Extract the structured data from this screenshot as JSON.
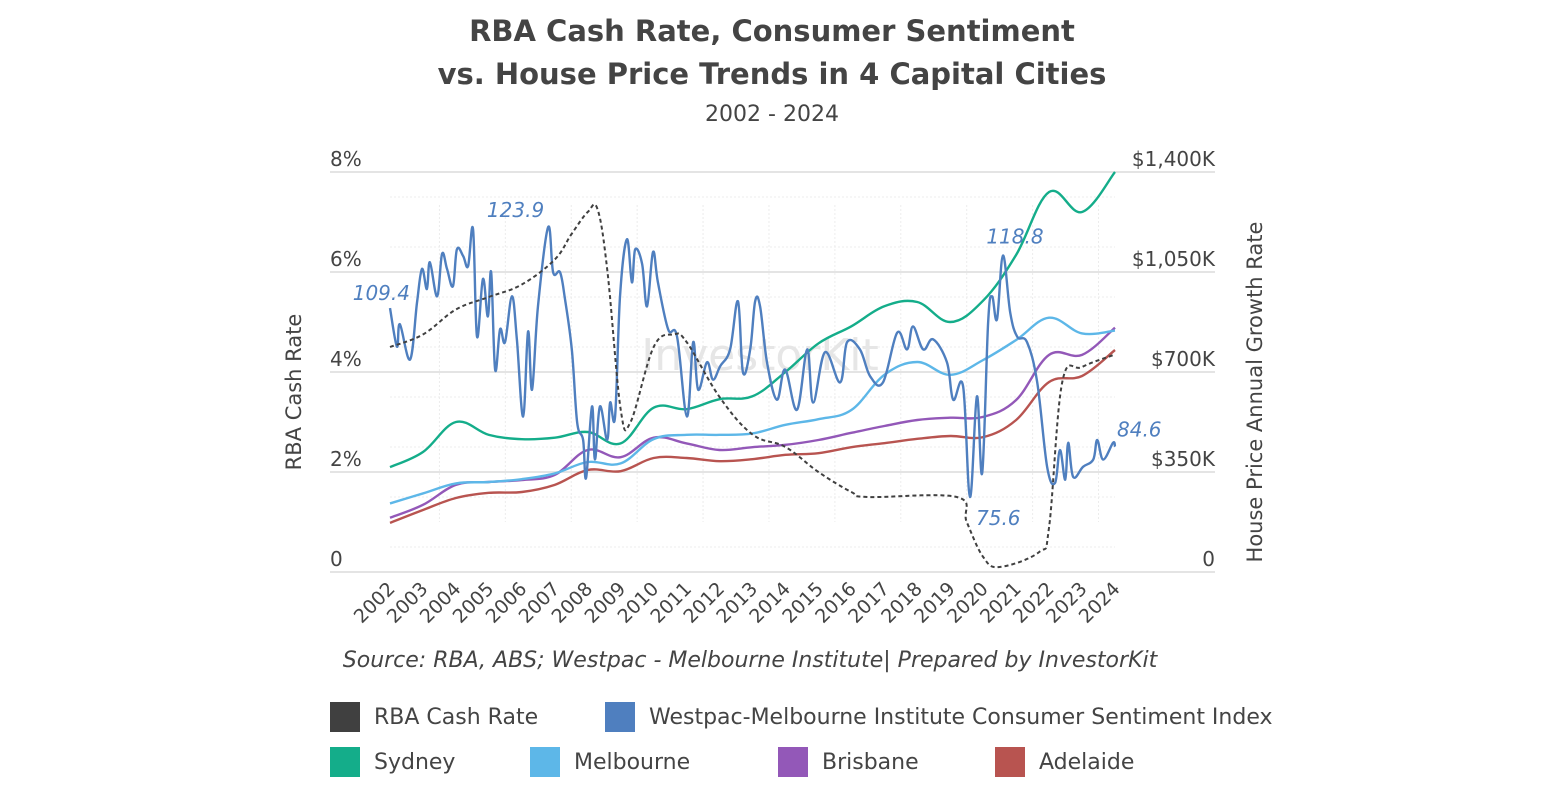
{
  "chart_data": {
    "type": "line",
    "title": "RBA Cash Rate, Consumer Sentiment vs. House Price Trends in 4 Capital Cities",
    "title_lines": [
      "RBA Cash Rate, Consumer Sentiment",
      "vs. House Price Trends in 4 Capital Cities"
    ],
    "subtitle": "2002 - 2024",
    "source": "Source: RBA, ABS; Westpac - Melbourne Institute| Prepared by InvestorKit",
    "watermark": "InvestorKit",
    "ylabel_left": "RBA Cash Rate",
    "ylabel_right": "House Price Annual Growth Rate",
    "ylim_left": [
      0,
      8
    ],
    "ylim_right": [
      0,
      1400
    ],
    "left_ticks": [
      "0",
      "2%",
      "4%",
      "6%",
      "8%"
    ],
    "right_ticks": [
      "0",
      "$350K",
      "$700K",
      "$1,050K",
      "$1,400K"
    ],
    "x_ticks": [
      "2002",
      "2003",
      "2004",
      "2005",
      "2006",
      "2007",
      "2008",
      "2009",
      "2010",
      "2011",
      "2012",
      "2013",
      "2014",
      "2015",
      "2016",
      "2017",
      "2018",
      "2019",
      "2020",
      "2021",
      "2022",
      "2023",
      "2024"
    ],
    "grid": true,
    "legend_position": "bottom",
    "annotations": [
      {
        "text": "109.4",
        "x": 2002.0,
        "y": 109.4
      },
      {
        "text": "123.9",
        "x": 2006.8,
        "y": 123.9
      },
      {
        "text": "118.8",
        "x": 2020.6,
        "y": 118.8
      },
      {
        "text": "75.6",
        "x": 2019.6,
        "y": 75.6
      },
      {
        "text": "84.6",
        "x": 2024.0,
        "y": 84.6
      }
    ],
    "series": [
      {
        "name": "RBA Cash Rate",
        "axis": "left",
        "color": "#404040",
        "dashed": true,
        "points": [
          [
            2002,
            4.5
          ],
          [
            2003,
            4.75
          ],
          [
            2004,
            5.25
          ],
          [
            2005,
            5.5
          ],
          [
            2006,
            5.75
          ],
          [
            2007,
            6.25
          ],
          [
            2007.5,
            6.75
          ],
          [
            2008,
            7.2
          ],
          [
            2008.3,
            7.25
          ],
          [
            2008.6,
            6.0
          ],
          [
            2009,
            3.25
          ],
          [
            2009.3,
            3.0
          ],
          [
            2010,
            4.5
          ],
          [
            2010.6,
            4.75
          ],
          [
            2011,
            4.6
          ],
          [
            2012,
            3.5
          ],
          [
            2013,
            2.75
          ],
          [
            2014,
            2.5
          ],
          [
            2015,
            2.0
          ],
          [
            2016,
            1.6
          ],
          [
            2016.5,
            1.5
          ],
          [
            2019.2,
            1.5
          ],
          [
            2019.5,
            1.0
          ],
          [
            2020,
            0.3
          ],
          [
            2020.5,
            0.1
          ],
          [
            2021.7,
            0.4
          ],
          [
            2022,
            0.9
          ],
          [
            2022.4,
            3.8
          ],
          [
            2023,
            4.1
          ],
          [
            2024,
            4.35
          ]
        ]
      },
      {
        "name": "Westpac-Melbourne Institute Consumer Sentiment Index",
        "axis": "hidden",
        "color": "#4f7fbf",
        "points": [
          [
            2002.0,
            109.4
          ],
          [
            2002.21,
            102.5
          ],
          [
            2002.3,
            106.5
          ],
          [
            2002.61,
            100.2
          ],
          [
            2002.82,
            110.4
          ],
          [
            2002.97,
            116.4
          ],
          [
            2003.12,
            112.8
          ],
          [
            2003.21,
            117.6
          ],
          [
            2003.43,
            111.5
          ],
          [
            2003.58,
            119.1
          ],
          [
            2003.73,
            116.4
          ],
          [
            2003.91,
            113.3
          ],
          [
            2004.03,
            119.9
          ],
          [
            2004.22,
            118.7
          ],
          [
            2004.37,
            116.9
          ],
          [
            2004.52,
            123.5
          ],
          [
            2004.64,
            104.3
          ],
          [
            2004.82,
            114.6
          ],
          [
            2004.97,
            107.9
          ],
          [
            2005.07,
            115.8
          ],
          [
            2005.19,
            98.4
          ],
          [
            2005.34,
            105.6
          ],
          [
            2005.49,
            103.3
          ],
          [
            2005.7,
            111.5
          ],
          [
            2005.85,
            103.8
          ],
          [
            2006.04,
            90.0
          ],
          [
            2006.19,
            105.2
          ],
          [
            2006.31,
            94.8
          ],
          [
            2006.49,
            109.7
          ],
          [
            2006.8,
            123.9
          ],
          [
            2006.95,
            115.8
          ],
          [
            2007.16,
            115.8
          ],
          [
            2007.31,
            111.0
          ],
          [
            2007.52,
            101.8
          ],
          [
            2007.68,
            88.9
          ],
          [
            2007.86,
            85.8
          ],
          [
            2007.95,
            79.0
          ],
          [
            2008.13,
            91.8
          ],
          [
            2008.22,
            82.3
          ],
          [
            2008.37,
            91.8
          ],
          [
            2008.59,
            85.8
          ],
          [
            2008.68,
            92.5
          ],
          [
            2008.83,
            90.0
          ],
          [
            2008.98,
            111.5
          ],
          [
            2009.19,
            121.7
          ],
          [
            2009.34,
            114.0
          ],
          [
            2009.44,
            119.9
          ],
          [
            2009.65,
            117.3
          ],
          [
            2009.8,
            109.7
          ],
          [
            2009.98,
            119.4
          ],
          [
            2010.13,
            114.0
          ],
          [
            2010.44,
            105.6
          ],
          [
            2010.71,
            104.3
          ],
          [
            2011.01,
            90.0
          ],
          [
            2011.2,
            103.3
          ],
          [
            2011.35,
            94.8
          ],
          [
            2011.62,
            99.7
          ],
          [
            2011.8,
            96.6
          ],
          [
            2012.02,
            99.0
          ],
          [
            2012.32,
            102.0
          ],
          [
            2012.56,
            110.6
          ],
          [
            2012.71,
            97.9
          ],
          [
            2012.93,
            102.0
          ],
          [
            2013.08,
            110.6
          ],
          [
            2013.23,
            109.7
          ],
          [
            2013.44,
            99.7
          ],
          [
            2013.74,
            93.0
          ],
          [
            2013.99,
            98.4
          ],
          [
            2014.35,
            91.2
          ],
          [
            2014.66,
            102.0
          ],
          [
            2014.84,
            92.5
          ],
          [
            2015.2,
            101.5
          ],
          [
            2015.66,
            96.1
          ],
          [
            2015.87,
            103.3
          ],
          [
            2016.26,
            102.0
          ],
          [
            2016.57,
            97.2
          ],
          [
            2016.96,
            96.1
          ],
          [
            2017.39,
            105.0
          ],
          [
            2017.69,
            102.0
          ],
          [
            2017.87,
            106.1
          ],
          [
            2018.18,
            102.0
          ],
          [
            2018.48,
            103.8
          ],
          [
            2018.9,
            99.7
          ],
          [
            2019.09,
            93.0
          ],
          [
            2019.39,
            95.4
          ],
          [
            2019.6,
            75.6
          ],
          [
            2019.81,
            93.6
          ],
          [
            2019.97,
            79.9
          ],
          [
            2020.15,
            106.8
          ],
          [
            2020.27,
            111.5
          ],
          [
            2020.42,
            107.4
          ],
          [
            2020.6,
            118.8
          ],
          [
            2020.82,
            108.6
          ],
          [
            2021.03,
            104.3
          ],
          [
            2021.33,
            103.3
          ],
          [
            2021.64,
            96.1
          ],
          [
            2021.94,
            81.0
          ],
          [
            2022.18,
            78.1
          ],
          [
            2022.33,
            84.0
          ],
          [
            2022.49,
            78.7
          ],
          [
            2022.58,
            85.3
          ],
          [
            2022.73,
            79.2
          ],
          [
            2023.03,
            81.0
          ],
          [
            2023.34,
            82.3
          ],
          [
            2023.46,
            85.8
          ],
          [
            2023.64,
            82.3
          ],
          [
            2023.94,
            85.3
          ],
          [
            2024.0,
            84.6
          ]
        ]
      },
      {
        "name": "Sydney",
        "axis": "right",
        "color": "#14ad8a",
        "points": [
          [
            2002,
            367
          ],
          [
            2003,
            420
          ],
          [
            2004,
            525
          ],
          [
            2005,
            480
          ],
          [
            2006,
            465
          ],
          [
            2007,
            470
          ],
          [
            2008,
            490
          ],
          [
            2009,
            450
          ],
          [
            2010,
            575
          ],
          [
            2011,
            570
          ],
          [
            2012,
            605
          ],
          [
            2013,
            615
          ],
          [
            2014,
            700
          ],
          [
            2015,
            800
          ],
          [
            2016,
            860
          ],
          [
            2017,
            930
          ],
          [
            2018,
            945
          ],
          [
            2019,
            875
          ],
          [
            2020,
            950
          ],
          [
            2021,
            1110
          ],
          [
            2022,
            1330
          ],
          [
            2023,
            1260
          ],
          [
            2024,
            1400
          ]
        ]
      },
      {
        "name": "Melbourne",
        "axis": "right",
        "color": "#5db7e8",
        "points": [
          [
            2002,
            240
          ],
          [
            2003,
            275
          ],
          [
            2004,
            310
          ],
          [
            2005,
            315
          ],
          [
            2006,
            325
          ],
          [
            2007,
            345
          ],
          [
            2008,
            385
          ],
          [
            2009,
            380
          ],
          [
            2010,
            465
          ],
          [
            2011,
            480
          ],
          [
            2012,
            480
          ],
          [
            2013,
            485
          ],
          [
            2014,
            515
          ],
          [
            2015,
            535
          ],
          [
            2016,
            567
          ],
          [
            2017,
            690
          ],
          [
            2018,
            735
          ],
          [
            2019,
            690
          ],
          [
            2020,
            742
          ],
          [
            2021,
            812
          ],
          [
            2022,
            890
          ],
          [
            2023,
            835
          ],
          [
            2024,
            845
          ]
        ]
      },
      {
        "name": "Brisbane",
        "axis": "right",
        "color": "#9358b8",
        "points": [
          [
            2002,
            190
          ],
          [
            2003,
            235
          ],
          [
            2004,
            305
          ],
          [
            2005,
            315
          ],
          [
            2006,
            322
          ],
          [
            2007,
            340
          ],
          [
            2008,
            427
          ],
          [
            2009,
            402
          ],
          [
            2010,
            470
          ],
          [
            2011,
            450
          ],
          [
            2012,
            427
          ],
          [
            2013,
            437
          ],
          [
            2014,
            445
          ],
          [
            2015,
            462
          ],
          [
            2016,
            487
          ],
          [
            2017,
            511
          ],
          [
            2018,
            532
          ],
          [
            2019,
            540
          ],
          [
            2020,
            543
          ],
          [
            2021,
            602
          ],
          [
            2022,
            760
          ],
          [
            2023,
            760
          ],
          [
            2024,
            855
          ]
        ]
      },
      {
        "name": "Adelaide",
        "axis": "right",
        "color": "#b85450",
        "points": [
          [
            2002,
            172
          ],
          [
            2003,
            217
          ],
          [
            2004,
            259
          ],
          [
            2005,
            277
          ],
          [
            2006,
            280
          ],
          [
            2007,
            305
          ],
          [
            2008,
            357
          ],
          [
            2009,
            353
          ],
          [
            2010,
            399
          ],
          [
            2011,
            399
          ],
          [
            2012,
            388
          ],
          [
            2013,
            395
          ],
          [
            2014,
            410
          ],
          [
            2015,
            416
          ],
          [
            2016,
            437
          ],
          [
            2017,
            451
          ],
          [
            2018,
            466
          ],
          [
            2019,
            476
          ],
          [
            2020,
            472
          ],
          [
            2021,
            532
          ],
          [
            2022,
            665
          ],
          [
            2023,
            686
          ],
          [
            2024,
            777
          ]
        ]
      }
    ]
  }
}
